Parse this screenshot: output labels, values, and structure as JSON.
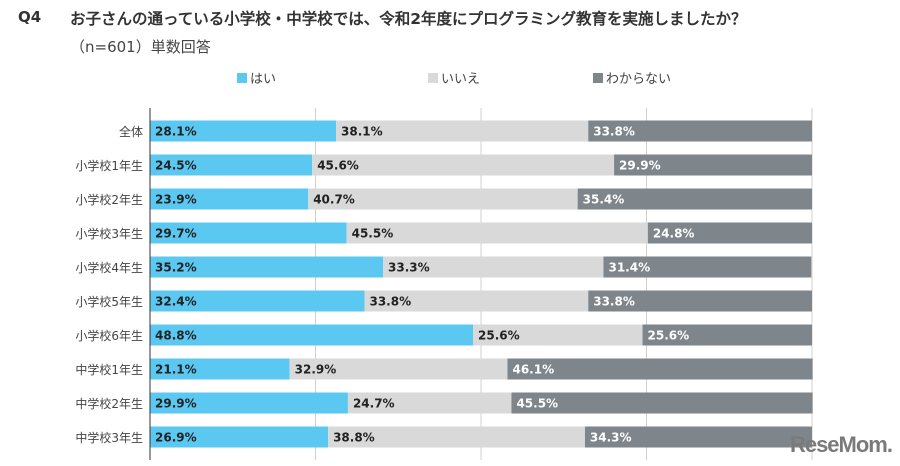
{
  "header": {
    "q": "Q4",
    "title": "お子さんの通っている小学校・中学校では、令和2年度にプログラミング教育を実施しましたか？",
    "subtitle": "（n=601）単数回答"
  },
  "watermark": "ReseMom",
  "chart_data": {
    "type": "bar",
    "orientation": "horizontal",
    "stacked": true,
    "xlim": [
      0,
      100
    ],
    "grid": true,
    "legend_position": "top",
    "categories": [
      "全体",
      "小学校1年生",
      "小学校2年生",
      "小学校3年生",
      "小学校4年生",
      "小学校5年生",
      "小学校6年生",
      "中学校1年生",
      "中学校2年生",
      "中学校3年生"
    ],
    "series": [
      {
        "name": "はい",
        "color": "#5bc8f2",
        "label_color": "#222222",
        "values": [
          28.1,
          24.5,
          23.9,
          29.7,
          35.2,
          32.4,
          48.8,
          21.1,
          29.9,
          26.9
        ]
      },
      {
        "name": "いいえ",
        "color": "#d9d9d9",
        "label_color": "#222222",
        "values": [
          38.1,
          45.6,
          40.7,
          45.5,
          33.3,
          33.8,
          25.6,
          32.9,
          24.7,
          38.8
        ]
      },
      {
        "name": "わからない",
        "color": "#7f868b",
        "label_color": "#ffffff",
        "values": [
          33.8,
          29.9,
          35.4,
          24.8,
          31.4,
          33.8,
          25.6,
          46.1,
          45.5,
          34.3
        ]
      }
    ]
  }
}
